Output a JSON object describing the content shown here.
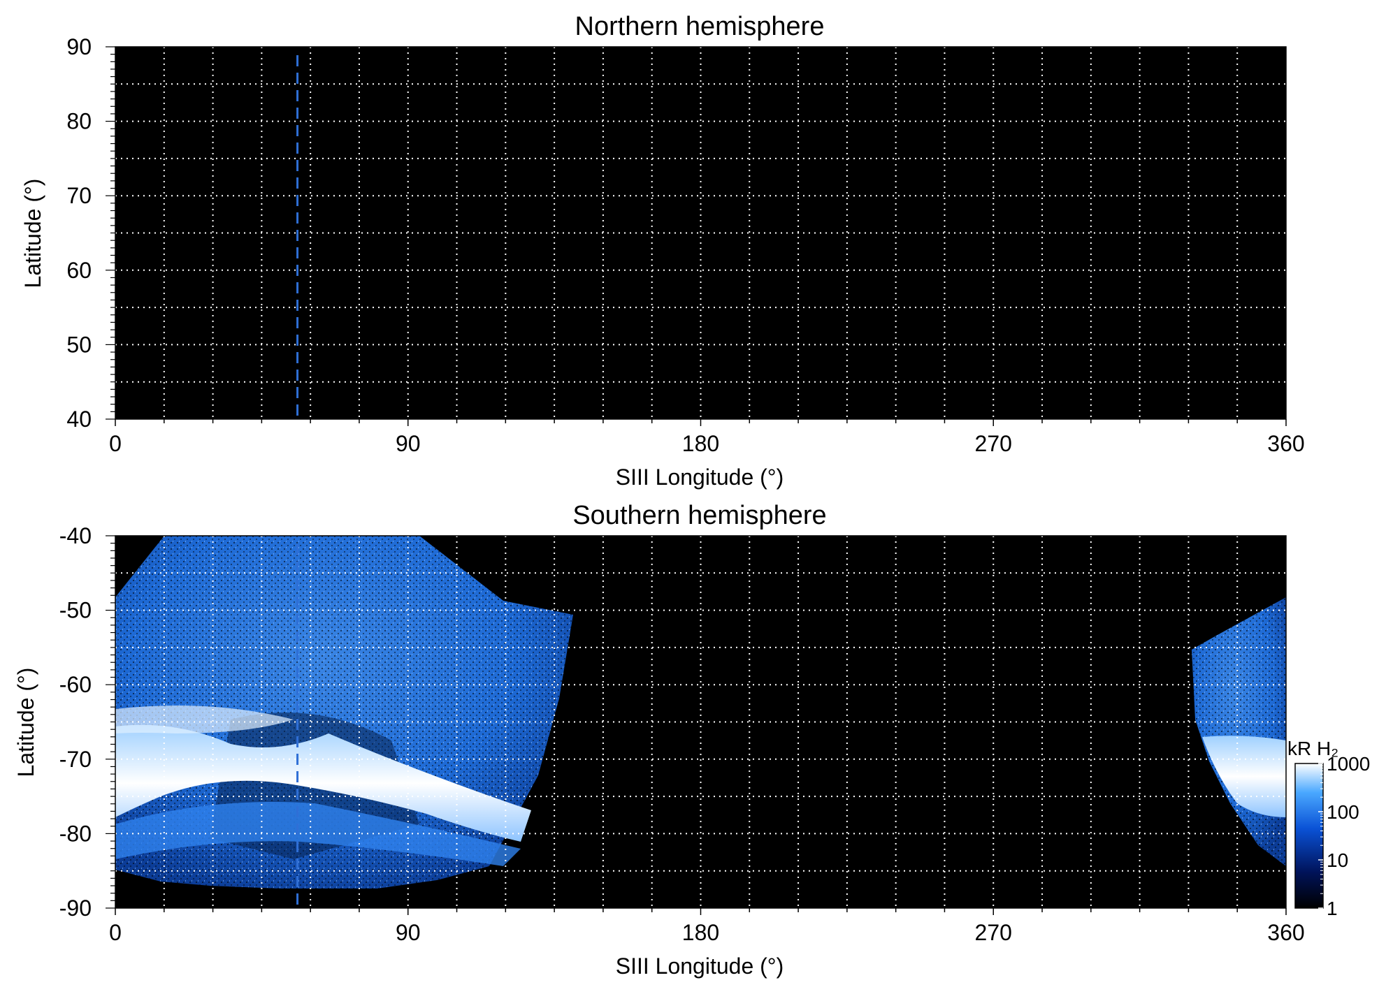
{
  "chart_data": [
    {
      "type": "heatmap",
      "title": "Northern hemisphere",
      "xlabel": "SIII Longitude (°)",
      "ylabel": "Latitude (°)",
      "xlim": [
        0,
        360
      ],
      "ylim": [
        40,
        90
      ],
      "xticks": [
        0,
        90,
        180,
        270,
        360
      ],
      "yticks": [
        40,
        50,
        60,
        70,
        80,
        90
      ],
      "grid": {
        "on": true,
        "style": "dotted",
        "color": "#ffffff",
        "x_step": 15,
        "y_step": 5
      },
      "marker_longitude": 56,
      "marker_color": "#2f6fd6",
      "background": "#000000",
      "emission": []
    },
    {
      "type": "heatmap",
      "title": "Southern hemisphere",
      "xlabel": "SIII Longitude (°)",
      "ylabel": "Latitude (°)",
      "xlim": [
        0,
        360
      ],
      "ylim": [
        -90,
        -40
      ],
      "xticks": [
        0,
        90,
        180,
        270,
        360
      ],
      "yticks": [
        -90,
        -80,
        -70,
        -60,
        -50,
        -40
      ],
      "grid": {
        "on": true,
        "style": "dotted",
        "color": "#ffffff",
        "x_step": 15,
        "y_step": 5
      },
      "marker_longitude": 56,
      "marker_color": "#2f6fd6",
      "background": "#000000",
      "emission": [
        {
          "region": "observed-footprint-west",
          "lon_range": [
            0,
            142
          ],
          "lat_range": [
            -87,
            -40
          ],
          "level": "10–300 kR"
        },
        {
          "region": "main-auroral-oval-west",
          "lon_range": [
            0,
            128
          ],
          "lat_range": [
            -82,
            -65
          ],
          "level": "300–1000 kR"
        },
        {
          "region": "observed-footprint-east",
          "lon_range": [
            332,
            360
          ],
          "lat_range": [
            -80,
            -47
          ],
          "level": "10–300 kR"
        },
        {
          "region": "main-auroral-oval-east",
          "lon_range": [
            335,
            360
          ],
          "lat_range": [
            -78,
            -66
          ],
          "level": "300–1000 kR"
        }
      ],
      "colorbar": {
        "label": "kR H₂",
        "scale": "log",
        "range": [
          1,
          1000
        ],
        "ticks": [
          "1",
          "10",
          "100",
          "1000"
        ],
        "colors": [
          "#000000",
          "#00135a",
          "#0a52d6",
          "#4aa8ff",
          "#ffffff"
        ]
      }
    }
  ]
}
